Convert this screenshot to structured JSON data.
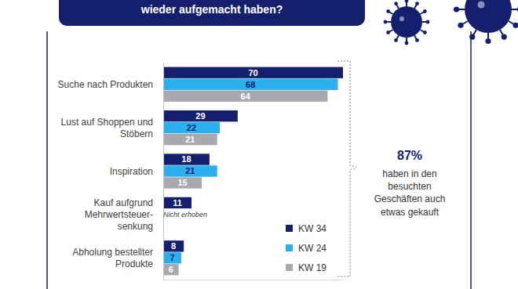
{
  "chart_data": {
    "type": "bar",
    "orientation": "horizontal",
    "title": "wieder aufgemacht haben?",
    "categories": [
      "Suche nach Produkten",
      "Lust auf Shoppen und\nStöbern",
      "Inspiration",
      "Kauf aufgrund\nMehrwertsteuer-\nsenkung",
      "Abholung bestellter\nProdukte"
    ],
    "series": [
      {
        "name": "KW 34",
        "color": "#14206e",
        "values": [
          70,
          29,
          18,
          11,
          8
        ]
      },
      {
        "name": "KW 24",
        "color": "#2bb0ee",
        "values": [
          68,
          22,
          21,
          null,
          7
        ]
      },
      {
        "name": "KW 19",
        "color": "#a7a9ae",
        "values": [
          64,
          21,
          15,
          null,
          6
        ]
      }
    ],
    "xlim": [
      0,
      70
    ],
    "data_labels": true,
    "tick_labels": "y",
    "legend": "lower right",
    "annotations": [
      {
        "text": "Nicht erhoben"
      },
      {
        "text": "87%"
      },
      {
        "text": "haben in den\nbesuchten\nGeschäften auch\netwas gekauft"
      }
    ]
  }
}
